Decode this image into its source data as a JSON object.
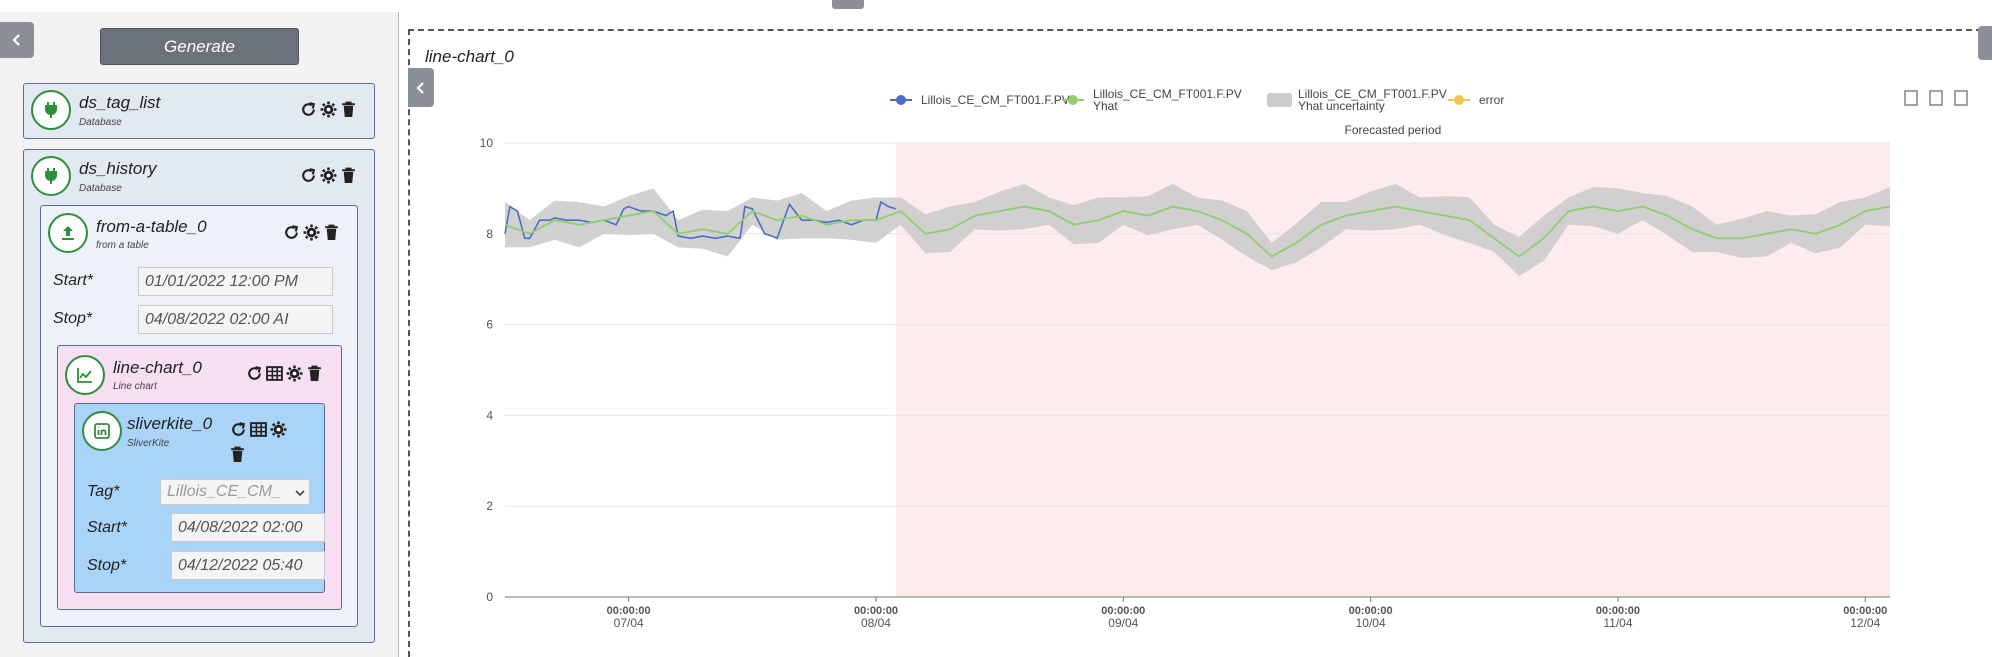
{
  "generate_label": "Generate",
  "nodes": {
    "ds_tag_list": {
      "title": "ds_tag_list",
      "subtitle": "Database"
    },
    "ds_history": {
      "title": "ds_history",
      "subtitle": "Database"
    },
    "from_table": {
      "title": "from-a-table_0",
      "subtitle": "from a table",
      "start_label": "Start*",
      "start_value": "01/01/2022 12:00 PM",
      "stop_label": "Stop*",
      "stop_value": "04/08/2022 02:00 AI"
    },
    "line_chart": {
      "title": "line-chart_0",
      "subtitle": "Line chart"
    },
    "sliverkite": {
      "title": "sliverkite_0",
      "subtitle": "SliverKite",
      "tag_label": "Tag*",
      "tag_value": "Lillois_CE_CM_",
      "start_label": "Start*",
      "start_value": "04/08/2022 02:00",
      "stop_label": "Stop*",
      "stop_value": "04/12/2022 05:40"
    }
  },
  "colors": {
    "tag_list_bg": "#e3e9f1",
    "history_bg": "#e3e9f1",
    "from_table_bg": "#eef2f8",
    "line_chart_bg": "#f6dff3",
    "sliverkite_bg": "#a9d3f7",
    "icon_green": "#2f8f3a"
  },
  "chart": {
    "panel_title": "line-chart_0",
    "forecast_label": "Forecasted period",
    "legend": [
      {
        "label": "Lillois_CE_CM_FT001.F.PV",
        "label2": "",
        "type": "line",
        "color": "#4d6ec8"
      },
      {
        "label": "Lillois_CE_CM_FT001.F.PV",
        "label2": "Yhat",
        "type": "line",
        "color": "#8fcf6e"
      },
      {
        "label": "Lillois_CE_CM_FT001.F.PV",
        "label2": "Yhat uncertainty",
        "type": "box",
        "color": "#cccccc"
      },
      {
        "label": "error",
        "label2": "",
        "type": "line",
        "color": "#f5c451"
      }
    ]
  },
  "chart_data": {
    "type": "line",
    "ylim": [
      0,
      10
    ],
    "yticks": [
      0,
      2,
      4,
      6,
      8,
      10
    ],
    "xlim": [
      -0.5,
      5.1
    ],
    "xticks": [
      {
        "x": 0,
        "time": "00:00:00",
        "date": "07/04"
      },
      {
        "x": 1,
        "time": "00:00:00",
        "date": "08/04"
      },
      {
        "x": 2,
        "time": "00:00:00",
        "date": "09/04"
      },
      {
        "x": 3,
        "time": "00:00:00",
        "date": "10/04"
      },
      {
        "x": 4,
        "time": "00:00:00",
        "date": "11/04"
      },
      {
        "x": 5,
        "time": "00:00:00",
        "date": "12/04"
      }
    ],
    "forecast_start": 1.08,
    "series": [
      {
        "name": "Lillois_CE_CM_FT001.F.PV",
        "color": "#4d6ec8",
        "x": [
          -0.5,
          -0.48,
          -0.45,
          -0.42,
          -0.4,
          -0.36,
          -0.32,
          -0.3,
          -0.25,
          -0.2,
          -0.15,
          -0.1,
          -0.05,
          -0.02,
          0.0,
          0.05,
          0.1,
          0.15,
          0.18,
          0.2,
          0.25,
          0.3,
          0.35,
          0.4,
          0.45,
          0.47,
          0.5,
          0.55,
          0.58,
          0.6,
          0.65,
          0.7,
          0.75,
          0.8,
          0.85,
          0.9,
          0.95,
          1.0,
          1.02,
          1.05,
          1.08
        ],
        "values": [
          8.0,
          8.6,
          8.5,
          7.9,
          7.9,
          8.3,
          8.3,
          8.35,
          8.3,
          8.3,
          8.25,
          8.3,
          8.2,
          8.55,
          8.6,
          8.5,
          8.5,
          8.4,
          8.5,
          7.95,
          7.9,
          7.95,
          7.9,
          7.95,
          7.9,
          8.6,
          8.55,
          8.0,
          7.95,
          7.9,
          8.65,
          8.3,
          8.3,
          8.25,
          8.3,
          8.2,
          8.3,
          8.3,
          8.7,
          8.6,
          8.55
        ]
      },
      {
        "name": "Lillois_CE_CM_FT001.F.PV Yhat",
        "color": "#8fcf6e",
        "x": [
          -0.5,
          -0.4,
          -0.3,
          -0.2,
          -0.1,
          0.0,
          0.1,
          0.2,
          0.3,
          0.4,
          0.5,
          0.6,
          0.7,
          0.8,
          0.9,
          1.0,
          1.1,
          1.2,
          1.3,
          1.4,
          1.5,
          1.6,
          1.7,
          1.8,
          1.9,
          2.0,
          2.1,
          2.2,
          2.3,
          2.4,
          2.5,
          2.6,
          2.7,
          2.8,
          2.9,
          3.0,
          3.1,
          3.2,
          3.3,
          3.4,
          3.5,
          3.6,
          3.7,
          3.8,
          3.9,
          4.0,
          4.1,
          4.2,
          4.3,
          4.4,
          4.5,
          4.6,
          4.7,
          4.8,
          4.9,
          5.0,
          5.1
        ],
        "values": [
          8.2,
          8.0,
          8.3,
          8.2,
          8.3,
          8.4,
          8.5,
          8.0,
          8.1,
          8.0,
          8.5,
          8.3,
          8.4,
          8.2,
          8.3,
          8.3,
          8.5,
          8.0,
          8.1,
          8.4,
          8.5,
          8.6,
          8.5,
          8.2,
          8.3,
          8.5,
          8.4,
          8.6,
          8.5,
          8.3,
          8.0,
          7.5,
          7.8,
          8.2,
          8.4,
          8.5,
          8.6,
          8.5,
          8.4,
          8.3,
          7.9,
          7.5,
          7.9,
          8.5,
          8.6,
          8.5,
          8.6,
          8.4,
          8.1,
          7.9,
          7.9,
          8.0,
          8.1,
          8.0,
          8.2,
          8.5,
          8.6
        ]
      }
    ],
    "uncertainty": {
      "name": "Lillois_CE_CM_FT001.F.PV Yhat uncertainty",
      "color": "#cccccc",
      "width": 0.35
    }
  }
}
